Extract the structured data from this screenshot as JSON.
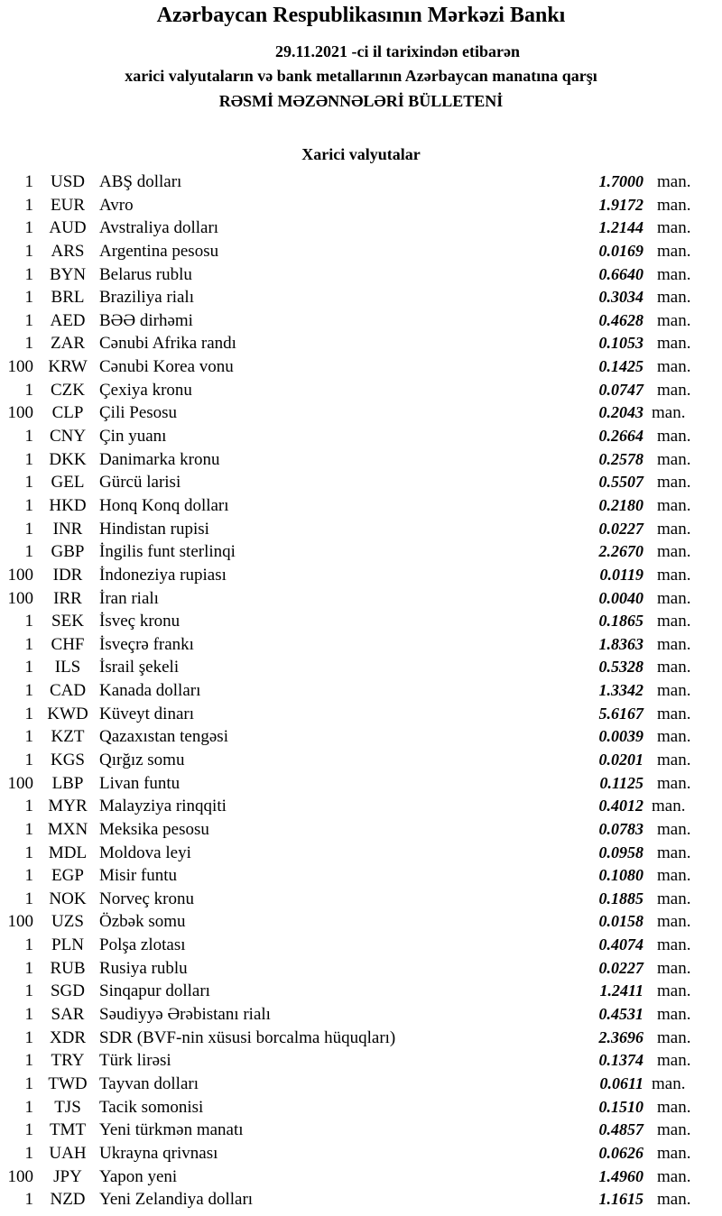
{
  "header": {
    "title": "Azərbaycan Respublikasının Mərkəzi Bankı",
    "date_line": "29.11.2021 -ci il tarixindən etibarən",
    "subtitle": "xarici valyutaların və bank metallarının Azərbaycan manatına qarşı",
    "bulletin": "RƏSMİ MƏZƏNNƏLƏRİ BÜLLETENİ"
  },
  "section": {
    "title": "Xarici valyutalar"
  },
  "rows": [
    {
      "unit": "1",
      "code": "USD",
      "name": "ABŞ dolları",
      "rate": "1.7000",
      "suffix": "man."
    },
    {
      "unit": "1",
      "code": "EUR",
      "name": "Avro",
      "rate": "1.9172",
      "suffix": "man."
    },
    {
      "unit": "1",
      "code": "AUD",
      "name": "Avstraliya dolları",
      "rate": "1.2144",
      "suffix": "man."
    },
    {
      "unit": "1",
      "code": "ARS",
      "name": "Argentina pesosu",
      "rate": "0.0169",
      "suffix": "man."
    },
    {
      "unit": "1",
      "code": "BYN",
      "name": "Belarus rublu",
      "rate": "0.6640",
      "suffix": "man."
    },
    {
      "unit": "1",
      "code": "BRL",
      "name": "Braziliya rialı",
      "rate": "0.3034",
      "suffix": "man."
    },
    {
      "unit": "1",
      "code": "AED",
      "name": "BƏƏ dirhəmi",
      "rate": "0.4628",
      "suffix": "man."
    },
    {
      "unit": "1",
      "code": "ZAR",
      "name": "Cənubi Afrika randı",
      "rate": "0.1053",
      "suffix": "man."
    },
    {
      "unit": "100",
      "code": "KRW",
      "name": "Cənubi Korea vonu",
      "rate": "0.1425",
      "suffix": "man."
    },
    {
      "unit": "1",
      "code": "CZK",
      "name": "Çexiya kronu",
      "rate": "0.0747",
      "suffix": "man."
    },
    {
      "unit": "100",
      "code": "CLP",
      "name": "Çili Pesosu",
      "rate": "0.2043",
      "suffix": "man."
    },
    {
      "unit": "1",
      "code": "CNY",
      "name": "Çin yuanı",
      "rate": "0.2664",
      "suffix": "man."
    },
    {
      "unit": "1",
      "code": "DKK",
      "name": "Danimarka kronu",
      "rate": "0.2578",
      "suffix": "man."
    },
    {
      "unit": "1",
      "code": "GEL",
      "name": "Gürcü larisi",
      "rate": "0.5507",
      "suffix": "man."
    },
    {
      "unit": "1",
      "code": "HKD",
      "name": "Honq Konq dolları",
      "rate": "0.2180",
      "suffix": "man."
    },
    {
      "unit": "1",
      "code": "INR",
      "name": "Hindistan rupisi",
      "rate": "0.0227",
      "suffix": "man."
    },
    {
      "unit": "1",
      "code": "GBP",
      "name": "İngilis funt sterlinqi",
      "rate": "2.2670",
      "suffix": "man."
    },
    {
      "unit": "100",
      "code": "IDR",
      "name": "İndoneziya rupiası",
      "rate": "0.0119",
      "suffix": "man."
    },
    {
      "unit": "100",
      "code": "IRR",
      "name": "İran rialı",
      "rate": "0.0040",
      "suffix": "man."
    },
    {
      "unit": "1",
      "code": "SEK",
      "name": "İsveç kronu",
      "rate": "0.1865",
      "suffix": "man."
    },
    {
      "unit": "1",
      "code": "CHF",
      "name": "İsveçrə frankı",
      "rate": "1.8363",
      "suffix": "man."
    },
    {
      "unit": "1",
      "code": "ILS",
      "name": "İsrail şekeli",
      "rate": "0.5328",
      "suffix": "man."
    },
    {
      "unit": "1",
      "code": "CAD",
      "name": "Kanada dolları",
      "rate": "1.3342",
      "suffix": "man."
    },
    {
      "unit": "1",
      "code": "KWD",
      "name": "Küveyt dinarı",
      "rate": "5.6167",
      "suffix": "man."
    },
    {
      "unit": "1",
      "code": "KZT",
      "name": "Qazaxıstan tengəsi",
      "rate": "0.0039",
      "suffix": "man."
    },
    {
      "unit": "1",
      "code": "KGS",
      "name": "Qırğız somu",
      "rate": "0.0201",
      "suffix": "man."
    },
    {
      "unit": "100",
      "code": "LBP",
      "name": "Livan funtu",
      "rate": "0.1125",
      "suffix": "man."
    },
    {
      "unit": "1",
      "code": "MYR",
      "name": "Malayziya rinqqiti",
      "rate": "0.4012",
      "suffix": "man."
    },
    {
      "unit": "1",
      "code": "MXN",
      "name": "Meksika pesosu",
      "rate": "0.0783",
      "suffix": "man."
    },
    {
      "unit": "1",
      "code": "MDL",
      "name": "Moldova leyi",
      "rate": "0.0958",
      "suffix": "man."
    },
    {
      "unit": "1",
      "code": "EGP",
      "name": "Misir funtu",
      "rate": "0.1080",
      "suffix": "man."
    },
    {
      "unit": "1",
      "code": "NOK",
      "name": "Norveç kronu",
      "rate": "0.1885",
      "suffix": "man."
    },
    {
      "unit": "100",
      "code": "UZS",
      "name": "Özbək somu",
      "rate": "0.0158",
      "suffix": "man."
    },
    {
      "unit": "1",
      "code": "PLN",
      "name": "Polşa zlotası",
      "rate": "0.4074",
      "suffix": "man."
    },
    {
      "unit": "1",
      "code": "RUB",
      "name": "Rusiya rublu",
      "rate": "0.0227",
      "suffix": "man."
    },
    {
      "unit": "1",
      "code": "SGD",
      "name": "Sinqapur dolları",
      "rate": "1.2411",
      "suffix": "man."
    },
    {
      "unit": "1",
      "code": "SAR",
      "name": "Səudiyyə Ərəbistanı rialı",
      "rate": "0.4531",
      "suffix": "man."
    },
    {
      "unit": "1",
      "code": "XDR",
      "name": "SDR (BVF-nin xüsusi borcalma hüquqları)",
      "rate": "2.3696",
      "suffix": "man."
    },
    {
      "unit": "1",
      "code": "TRY",
      "name": "Türk lirəsi",
      "rate": "0.1374",
      "suffix": "man."
    },
    {
      "unit": "1",
      "code": "TWD",
      "name": "Tayvan dolları",
      "rate": "0.0611",
      "suffix": "man."
    },
    {
      "unit": "1",
      "code": "TJS",
      "name": "Tacik somonisi",
      "rate": "0.1510",
      "suffix": "man."
    },
    {
      "unit": "1",
      "code": "TMT",
      "name": "Yeni türkmən manatı",
      "rate": "0.4857",
      "suffix": "man."
    },
    {
      "unit": "1",
      "code": "UAH",
      "name": "Ukrayna qrivnası",
      "rate": "0.0626",
      "suffix": "man."
    },
    {
      "unit": "100",
      "code": "JPY",
      "name": "Yapon yeni",
      "rate": "1.4960",
      "suffix": "man."
    },
    {
      "unit": "1",
      "code": "NZD",
      "name": "Yeni Zelandiya dolları",
      "rate": "1.1615",
      "suffix": "man."
    }
  ]
}
